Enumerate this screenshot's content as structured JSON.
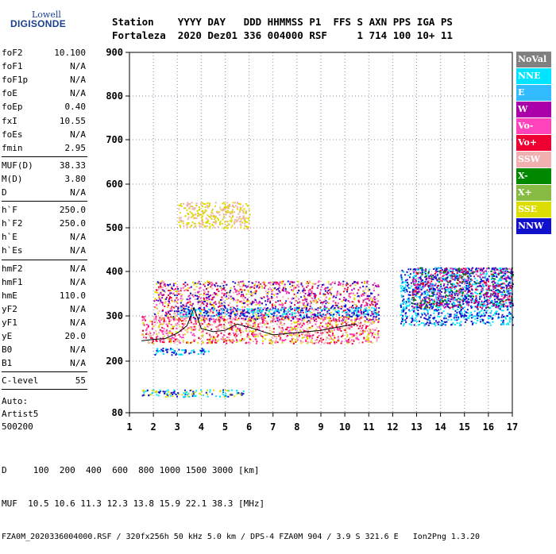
{
  "logo": {
    "line1": "Lowell",
    "line2": "DIGISONDE"
  },
  "header": {
    "line1": "Station    YYYY DAY   DDD HHMMSS P1  FFS S AXN PPS IGA PS",
    "line2": "Fortaleza  2020 Dez01 336 004000 RSF     1 714 100 10+ 11"
  },
  "params": {
    "group1": [
      {
        "name": "foF2",
        "value": "10.100"
      },
      {
        "name": "foF1",
        "value": "N/A"
      },
      {
        "name": "foF1p",
        "value": "N/A"
      },
      {
        "name": "foE",
        "value": "N/A"
      },
      {
        "name": "foEp",
        "value": "0.40"
      },
      {
        "name": "fxI",
        "value": "10.55"
      },
      {
        "name": "foEs",
        "value": "N/A"
      },
      {
        "name": "fmin",
        "value": "2.95"
      }
    ],
    "group2": [
      {
        "name": "MUF(D)",
        "value": "38.33"
      },
      {
        "name": "M(D)",
        "value": "3.80"
      },
      {
        "name": "D",
        "value": "N/A"
      }
    ],
    "group3": [
      {
        "name": "h`F",
        "value": "250.0"
      },
      {
        "name": "h`F2",
        "value": "250.0"
      },
      {
        "name": "h`E",
        "value": "N/A"
      },
      {
        "name": "h`Es",
        "value": "N/A"
      }
    ],
    "group4": [
      {
        "name": "hmF2",
        "value": "N/A"
      },
      {
        "name": "hmF1",
        "value": "N/A"
      },
      {
        "name": "hmE",
        "value": "110.0"
      },
      {
        "name": "yF2",
        "value": "N/A"
      },
      {
        "name": "yF1",
        "value": "N/A"
      },
      {
        "name": "yE",
        "value": "20.0"
      },
      {
        "name": "B0",
        "value": "N/A"
      },
      {
        "name": "B1",
        "value": "N/A"
      }
    ],
    "group5": [
      {
        "name": "C-level",
        "value": "55"
      }
    ],
    "auto_lines": [
      "Auto:",
      "Artist5",
      "500200"
    ]
  },
  "legend": [
    {
      "label": "NoVal",
      "color": "#808080"
    },
    {
      "label": "NNE",
      "color": "#00e5ff"
    },
    {
      "label": "E",
      "color": "#33bbff"
    },
    {
      "label": "W",
      "color": "#aa00aa"
    },
    {
      "label": "Vo-",
      "color": "#ff44bb"
    },
    {
      "label": "Vo+",
      "color": "#ee0033"
    },
    {
      "label": "SSW",
      "color": "#f0b0b0"
    },
    {
      "label": "X-",
      "color": "#008800"
    },
    {
      "label": "X+",
      "color": "#88bb44"
    },
    {
      "label": "SSE",
      "color": "#dddd00"
    },
    {
      "label": "NNW",
      "color": "#1111cc"
    }
  ],
  "bottom": {
    "line1": "D     100  200  400  600  800 1000 1500 3000 [km]",
    "line2": "MUF  10.5 10.6 11.3 12.3 13.8 15.9 22.1 38.3 [MHz]",
    "line3": "FZA0M_2020336004000.RSF / 320fx256h 50 kHz 5.0 km / DPS-4 FZA0M 904 / 3.9 S 321.6 E   Ion2Png 1.3.20"
  },
  "chart_data": {
    "type": "scatter",
    "title": "",
    "xlabel": "",
    "ylabel": "",
    "xlim": [
      1,
      17
    ],
    "ylim": [
      80,
      900
    ],
    "x_ticks": [
      1,
      2,
      3,
      4,
      5,
      6,
      7,
      8,
      9,
      10,
      11,
      12,
      13,
      14,
      15,
      16,
      17
    ],
    "y_ticks": [
      80,
      200,
      300,
      400,
      500,
      600,
      700,
      800,
      900
    ],
    "trace_points": [
      [
        1.5,
        245
      ],
      [
        2.0,
        248
      ],
      [
        2.5,
        250
      ],
      [
        3.0,
        262
      ],
      [
        3.4,
        278
      ],
      [
        3.7,
        318
      ],
      [
        4.0,
        272
      ],
      [
        4.5,
        265
      ],
      [
        5.0,
        268
      ],
      [
        5.5,
        282
      ],
      [
        6.0,
        275
      ],
      [
        7.0,
        258
      ],
      [
        8.0,
        263
      ],
      [
        9.0,
        268
      ],
      [
        10.0,
        278
      ],
      [
        10.5,
        282
      ]
    ],
    "trace_color": "#000000",
    "clusters": [
      {
        "x": [
          1.5,
          11.4
        ],
        "y": [
          240,
          300
        ],
        "colors": [
          "red",
          "pink",
          "yellow",
          "white"
        ]
      },
      {
        "x": [
          2.0,
          11.4
        ],
        "y": [
          290,
          380
        ],
        "colors": [
          "red",
          "pink",
          "yellow",
          "white",
          "blue",
          "purple"
        ]
      },
      {
        "x": [
          3.0,
          11.4
        ],
        "y": [
          300,
          320
        ],
        "colors": [
          "cyan",
          "blue"
        ]
      },
      {
        "x": [
          12.3,
          17.0
        ],
        "y": [
          280,
          410
        ],
        "colors": [
          "cyan",
          "blue"
        ]
      },
      {
        "x": [
          12.8,
          17.0
        ],
        "y": [
          320,
          410
        ],
        "colors": [
          "purple",
          "pink",
          "red",
          "green",
          "blue"
        ]
      },
      {
        "x": [
          1.5,
          5.8
        ],
        "y": [
          118,
          135
        ],
        "colors": [
          "blue",
          "cyan",
          "yellow"
        ]
      },
      {
        "x": [
          2.0,
          4.5
        ],
        "y": [
          215,
          230
        ],
        "colors": [
          "cyan",
          "blue"
        ]
      },
      {
        "x": [
          3.0,
          6.0
        ],
        "y": [
          500,
          560
        ],
        "colors": [
          "yellow",
          "white"
        ]
      }
    ]
  }
}
